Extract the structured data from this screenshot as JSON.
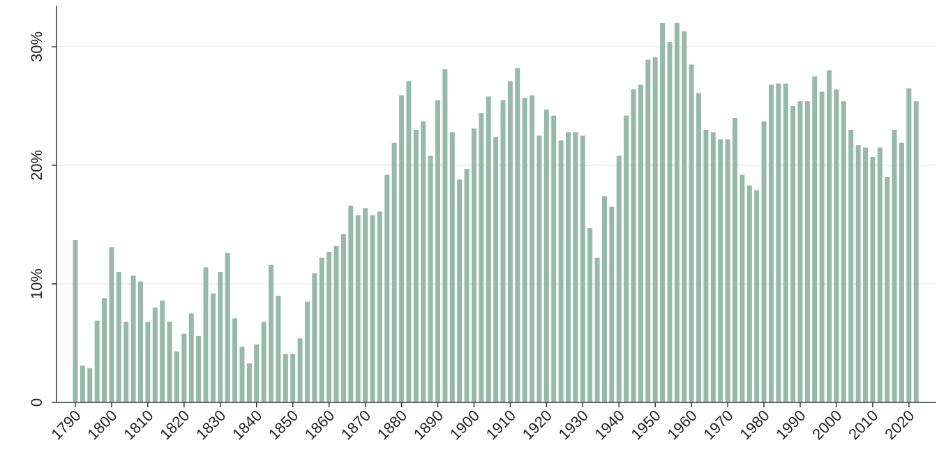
{
  "chart_data": {
    "type": "bar",
    "title": "",
    "xlabel": "",
    "ylabel": "",
    "x_start": 1790,
    "x_step": 2,
    "x_tick_labels": [
      "1790",
      "1800",
      "1810",
      "1820",
      "1830",
      "1840",
      "1850",
      "1860",
      "1870",
      "1880",
      "1890",
      "1900",
      "1910",
      "1920",
      "1930",
      "1940",
      "1950",
      "1960",
      "1970",
      "1980",
      "1990",
      "2000",
      "2010",
      "2020"
    ],
    "y_tick_values": [
      0,
      10,
      20,
      30
    ],
    "y_tick_labels": [
      "0",
      "10%",
      "20%",
      "30%"
    ],
    "ylim": [
      0,
      33.3
    ],
    "grid": true,
    "bar_color": "#97b9ab",
    "values": [
      13.7,
      3.1,
      2.9,
      6.9,
      8.8,
      13.1,
      11.0,
      6.8,
      10.7,
      10.2,
      6.8,
      8.0,
      8.6,
      6.8,
      4.3,
      5.8,
      7.5,
      5.6,
      11.4,
      9.2,
      11.0,
      12.6,
      7.1,
      4.7,
      3.3,
      4.9,
      6.8,
      11.6,
      9.0,
      4.1,
      4.1,
      5.4,
      8.5,
      10.9,
      12.2,
      12.7,
      13.2,
      14.2,
      16.6,
      15.8,
      16.4,
      15.8,
      16.1,
      19.2,
      21.9,
      25.9,
      27.1,
      23.0,
      23.7,
      20.8,
      25.5,
      28.1,
      22.8,
      18.8,
      19.7,
      23.1,
      24.4,
      25.8,
      22.4,
      25.5,
      27.1,
      28.2,
      25.7,
      25.9,
      22.5,
      24.7,
      24.2,
      22.1,
      22.8,
      22.8,
      22.5,
      14.7,
      12.2,
      17.4,
      16.5,
      20.8,
      24.2,
      26.4,
      26.8,
      28.9,
      29.1,
      32.0,
      30.4,
      32.0,
      31.3,
      28.5,
      26.1,
      23.0,
      22.8,
      22.2,
      22.2,
      24.0,
      19.2,
      18.3,
      17.9,
      23.7,
      26.8,
      26.9,
      26.9,
      25.0,
      25.4,
      25.4,
      27.5,
      26.2,
      28.0,
      26.4,
      25.4,
      23.0,
      21.7,
      21.5,
      20.7,
      21.5,
      19.0,
      23.0,
      21.9,
      26.5,
      25.4
    ]
  }
}
